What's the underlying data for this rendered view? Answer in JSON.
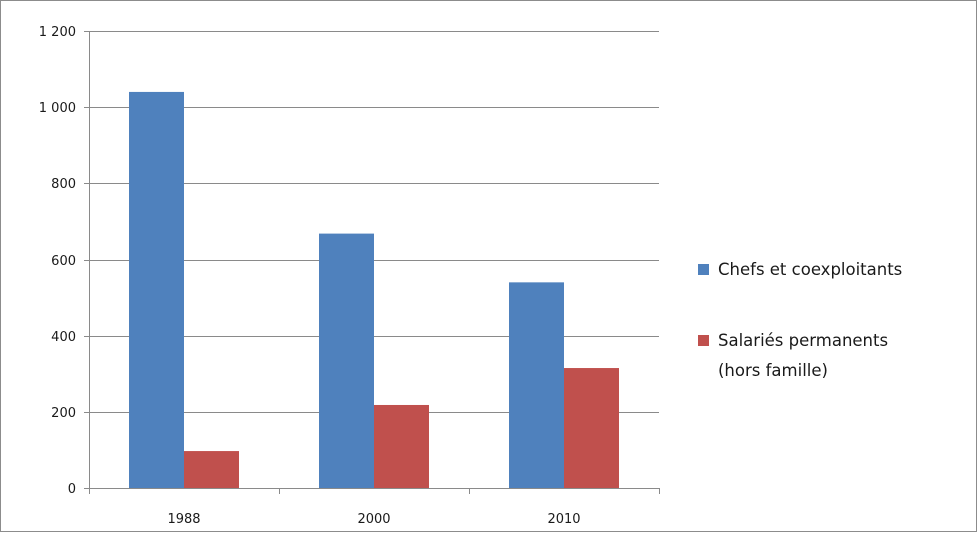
{
  "chart_data": {
    "type": "bar",
    "categories": [
      "1988",
      "2000",
      "2010"
    ],
    "series": [
      {
        "name": "Chefs et coexploitants",
        "values": [
          1040,
          668,
          540
        ],
        "color": "#4f81bd"
      },
      {
        "name": "Salariés permanents (hors famille)",
        "name_lines": [
          "Salariés permanents",
          "(hors famille)"
        ],
        "values": [
          97,
          218,
          315
        ],
        "color": "#c0504d"
      }
    ],
    "ylim": [
      0,
      1200
    ],
    "yticks": [
      0,
      200,
      400,
      600,
      800,
      1000,
      1200
    ],
    "ytick_labels": [
      "0",
      "200",
      "400",
      "600",
      "800",
      "1 000",
      "1 200"
    ],
    "grid": true,
    "legend": "right",
    "title": "",
    "xlabel": "",
    "ylabel": ""
  }
}
